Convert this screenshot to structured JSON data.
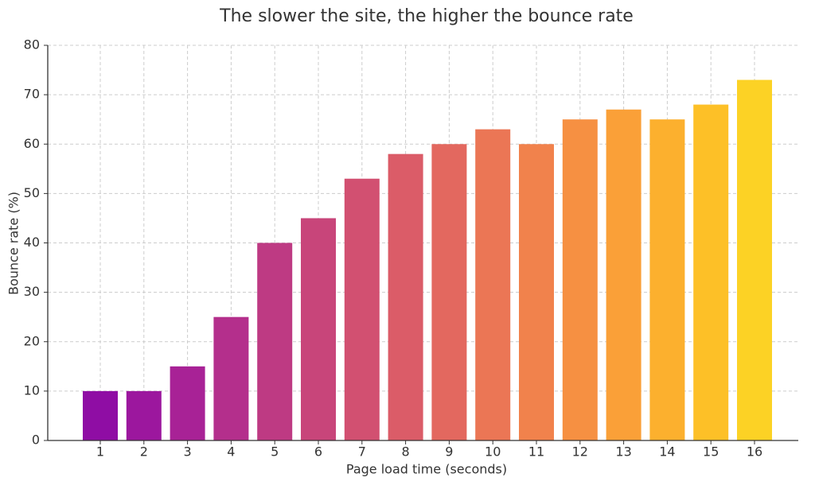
{
  "chart_data": {
    "type": "bar",
    "title": "The slower the site, the higher the bounce rate",
    "x_label": "Page load time (seconds)",
    "y_label": "Bounce rate (%)",
    "categories": [
      "1",
      "2",
      "3",
      "4",
      "5",
      "6",
      "7",
      "8",
      "9",
      "10",
      "11",
      "12",
      "13",
      "14",
      "15",
      "16"
    ],
    "values": [
      10,
      10,
      15,
      25,
      40,
      45,
      53,
      58,
      60,
      63,
      60,
      65,
      67,
      65,
      68,
      73
    ],
    "colors": [
      "#8f0da4",
      "#9c179e",
      "#a82296",
      "#b42f8c",
      "#be3a83",
      "#c8457a",
      "#d25071",
      "#db5c68",
      "#e3685f",
      "#eb7655",
      "#f1824c",
      "#f69042",
      "#faa038",
      "#fcb02e",
      "#fdc027",
      "#fcd225"
    ],
    "ylim": [
      0,
      80
    ],
    "yticks": [
      0,
      10,
      20,
      30,
      40,
      50,
      60,
      70,
      80
    ],
    "grid": true
  }
}
